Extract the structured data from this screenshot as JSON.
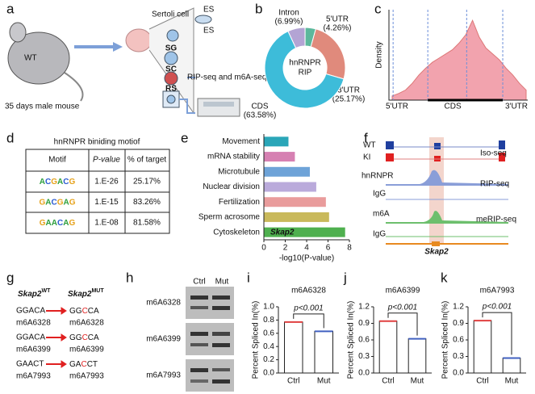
{
  "panel_labels": [
    "a",
    "b",
    "c",
    "d",
    "e",
    "f",
    "g",
    "h",
    "i",
    "j",
    "k"
  ],
  "panel_a": {
    "mouse": "WT",
    "caption": "35 days male mouse",
    "cells": [
      "Sertoli cell",
      "ES",
      "ES",
      "SG",
      "SC",
      "RS"
    ],
    "method": "RIP-seq and m6A-seq"
  },
  "panel_d": {
    "title": "hnRNPR biniding motiof",
    "header": [
      "Motif",
      "P-value",
      "% of target"
    ],
    "rows": [
      [
        "ACGACG",
        "1.E-26",
        "25.17%"
      ],
      [
        "GACGAG",
        "1.E-15",
        "83.26%"
      ],
      [
        "GAACAG",
        "1.E-08",
        "81.58%"
      ]
    ]
  },
  "panel_f": {
    "tracks": [
      "WT",
      "KI",
      "hnRNPR",
      "IgG",
      "m6A",
      "IgG"
    ],
    "methods": [
      "Iso-seq",
      "RIP-seq",
      "meRIP-seq"
    ],
    "gene": "Skap2"
  },
  "panel_g": {
    "wt_header": [
      "Skap2",
      "WT"
    ],
    "mut_header": [
      "Skap2",
      "MUT"
    ],
    "rows": [
      {
        "wt": "GGACA",
        "mut": [
          "GG",
          "C",
          "CA"
        ],
        "site": "m6A6328"
      },
      {
        "wt": "GGACA",
        "mut": [
          "GG",
          "C",
          "CA"
        ],
        "site": "m6A6399"
      },
      {
        "wt": "GAACT",
        "mut": [
          "GA",
          "C",
          "CT"
        ],
        "site": "m6A7993"
      }
    ]
  },
  "panel_h": {
    "lanes": [
      "Ctrl",
      "Mut"
    ],
    "sites": [
      "m6A6328",
      "m6A6399",
      "m6A7993"
    ]
  },
  "chart_data": [
    {
      "type": "pie",
      "center_label": [
        "hnRNPR",
        "RIP"
      ],
      "donut": true,
      "categories": [
        "Intron",
        "5'UTR",
        "3'UTR",
        "CDS"
      ],
      "values": [
        6.99,
        4.26,
        25.17,
        63.58
      ],
      "value_labels": [
        "(6.99%)",
        "(4.26%)",
        "(25.17%)",
        "(63.58%)"
      ],
      "colors": [
        "#b3a4d4",
        "#5cb89c",
        "#e08a7c",
        "#3dbcd9"
      ]
    },
    {
      "type": "area",
      "ylabel": "Density",
      "regions": [
        "5'UTR",
        "CDS",
        "3'UTR"
      ],
      "color": "#f2a3ae",
      "values": [
        0.05,
        0.08,
        0.12,
        0.2,
        0.3,
        0.38,
        0.45,
        0.5,
        0.55,
        0.6,
        0.68,
        0.78,
        0.95,
        0.75,
        0.62,
        0.55,
        0.48,
        0.38,
        0.3,
        0.2,
        0.12
      ],
      "ylim": [
        0,
        1
      ]
    },
    {
      "type": "bar",
      "horizontal": true,
      "xlabel": "-log10(P-value)",
      "categories": [
        "Movement",
        "mRNA stability",
        "Microtubule",
        "Nuclear division",
        "Fertilization",
        "Sperm acrosome",
        "Cytoskeleton"
      ],
      "values": [
        2.3,
        2.9,
        4.3,
        4.9,
        5.8,
        6.1,
        7.6
      ],
      "colors": [
        "#2aa6b8",
        "#d680b2",
        "#6ea3d8",
        "#baaadb",
        "#e99c9c",
        "#c9b95b",
        "#4fb04f"
      ],
      "label_colors": [
        "#111111",
        "#e0201c",
        "#e0201c",
        "#111111",
        "#111111",
        "#e0201c",
        "#e0201c"
      ],
      "annotation": "Skap2",
      "xlim": [
        0,
        8
      ],
      "xticks": [
        0,
        2,
        4,
        6,
        8
      ]
    },
    {
      "type": "bar",
      "title": "m6A6328",
      "ylabel": "Percent Spliced In(%)",
      "categories": [
        "Ctrl",
        "Mut"
      ],
      "values": [
        0.77,
        0.63
      ],
      "annotation": "p<0.001",
      "ylim": [
        0,
        1
      ],
      "yticks": [
        {
          "value": 0,
          "label": "0.0"
        },
        0.2,
        0.4,
        0.6,
        0.8,
        {
          "value": 1,
          "label": "1.0"
        }
      ]
    },
    {
      "type": "bar",
      "title": "m6A6399",
      "ylabel": "Percent Spliced In(%)",
      "categories": [
        "Ctrl",
        "Mut"
      ],
      "values": [
        0.94,
        0.62
      ],
      "annotation": "p<0.001",
      "ylim": [
        0,
        1.2
      ],
      "yticks": [
        {
          "value": 0,
          "label": "0.0"
        },
        0.3,
        0.6,
        0.9,
        1.2
      ]
    },
    {
      "type": "bar",
      "title": "m6A7993",
      "ylabel": "Percent Spliced In(%)",
      "categories": [
        "Ctrl",
        "Mut"
      ],
      "values": [
        0.95,
        0.27
      ],
      "annotation": "p<0.001",
      "ylim": [
        0,
        1.2
      ],
      "yticks": [
        {
          "value": 0,
          "label": "0.0"
        },
        0.3,
        0.6,
        0.9,
        1.2
      ]
    }
  ]
}
